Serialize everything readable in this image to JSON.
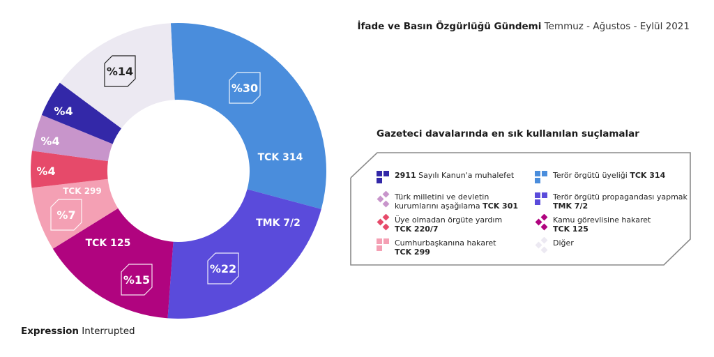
{
  "header": {
    "title_bold": "İfade ve Basın Özgürlüğü Gündemi",
    "title_light": "Temmuz - Ağustos - Eylül 2021"
  },
  "footer": {
    "brand_bold": "Expression",
    "brand_light": "Interrupted"
  },
  "legend": {
    "title": "Gazeteci davalarında en sık kullanılan suçlamalar",
    "items": [
      {
        "line1_bold": "2911",
        "line1": " Sayılı Kanun'a muhalefet",
        "line2": "",
        "color": "#3328a8",
        "icon": "squares-icon"
      },
      {
        "line1": "Terör örgütü üyeliği ",
        "line1_bold_after": "TCK 314",
        "line2": "",
        "color": "#4a8ddc",
        "icon": "squares-icon"
      },
      {
        "line1": "Türk milletini ve devletin",
        "line2": "kurumlarını aşağılama ",
        "line2_bold": "TCK 301",
        "color": "#c895cb",
        "icon": "diamonds-icon"
      },
      {
        "line1": "Terör örgütü propagandası yapmak",
        "line2_bold": "TMK 7/2",
        "color": "#5a4bdb",
        "icon": "squares-icon"
      },
      {
        "line1": "Üye olmadan örgüte yardım",
        "line2_bold": "TCK 220/7",
        "color": "#e64a6a",
        "icon": "diamonds-icon"
      },
      {
        "line1": "Kamu görevlisine hakaret",
        "line2_bold": "TCK 125",
        "color": "#b0047f",
        "icon": "diamonds-icon"
      },
      {
        "line1": "Cumhurbaşkanına hakaret",
        "line2_bold": "TCK 299",
        "color": "#f4a0b4",
        "icon": "squares-icon"
      },
      {
        "line1": "Diğer",
        "line2": "",
        "color": "#ece9f2",
        "icon": "diamonds-icon"
      }
    ]
  },
  "chart_data": {
    "type": "pie",
    "subtype": "donut",
    "title": "Gazeteci davalarında en sık kullanılan suçlamalar",
    "subtitle": "İfade ve Basın Özgürlüğü Gündemi Temmuz - Ağustos - Eylül 2021",
    "categories": [
      "TCK 314",
      "TMK 7/2",
      "TCK 125",
      "TCK 299",
      "TCK 220/7",
      "TCK 301",
      "2911",
      "Diğer"
    ],
    "descriptions": [
      "Terör örgütü üyeliği",
      "Terör örgütü propagandası yapmak",
      "Kamu görevlisine hakaret",
      "Cumhurbaşkanına hakaret",
      "Üye olmadan örgüte yardım",
      "Türk milletini ve devletin kurumlarını aşağılama",
      "2911 Sayılı Kanun'a muhalefet",
      "Diğer"
    ],
    "values": [
      30,
      22,
      15,
      7,
      4,
      4,
      4,
      14
    ],
    "value_labels": [
      "%30",
      "%22",
      "%15",
      "%7",
      "%4",
      "%4",
      "%4",
      "%14"
    ],
    "slice_name_labels": [
      "TCK 314",
      "TMK 7/2",
      "TCK 125",
      "TCK 299",
      "",
      "",
      "",
      ""
    ],
    "colors": [
      "#4a8ddc",
      "#5a4bdb",
      "#b0047f",
      "#f4a0b4",
      "#e64a6a",
      "#c895cb",
      "#3328a8",
      "#ece9f2"
    ],
    "unit": "%",
    "legend_position": "right"
  }
}
